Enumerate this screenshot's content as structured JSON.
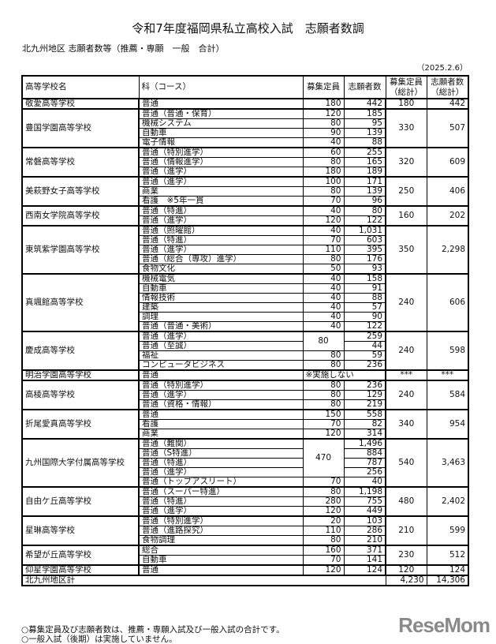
{
  "title": "令和7年度福岡県私立高校入試　志願者数調",
  "subtitle": "北九州地区 志願者数等（推薦・専願　一般　合計）",
  "date": "（2025.2.6）",
  "headers": {
    "school": "高等学校名",
    "course": "科（コース）",
    "capacity": "募集定員",
    "applicants": "志願者数",
    "total_capacity": "募集定員（総計）",
    "total_applicants": "志願者数（総計）"
  },
  "schools": [
    {
      "name": "敬愛高等学校",
      "total_capacity": "180",
      "total_applicants": "442",
      "courses": [
        {
          "name": "普通",
          "capacity": "180",
          "applicants": "442"
        }
      ]
    },
    {
      "name": "豊国学園高等学校",
      "total_capacity": "330",
      "total_applicants": "507",
      "courses": [
        {
          "name": "普通（普通・保育）",
          "capacity": "120",
          "applicants": "185"
        },
        {
          "name": "機械システム",
          "capacity": "80",
          "applicants": "95"
        },
        {
          "name": "自動車",
          "capacity": "90",
          "applicants": "139"
        },
        {
          "name": "電子情報",
          "capacity": "40",
          "applicants": "88"
        }
      ]
    },
    {
      "name": "常磐高等学校",
      "total_capacity": "320",
      "total_applicants": "609",
      "courses": [
        {
          "name": "普通（特別進学）",
          "capacity": "60",
          "applicants": "255"
        },
        {
          "name": "普通（情報進学）",
          "capacity": "80",
          "applicants": "165"
        },
        {
          "name": "普通（進学）",
          "capacity": "180",
          "applicants": "189"
        }
      ]
    },
    {
      "name": "美萩野女子高等学校",
      "total_capacity": "250",
      "total_applicants": "406",
      "courses": [
        {
          "name": "普通（進学）",
          "capacity": "100",
          "applicants": "171"
        },
        {
          "name": "商業",
          "capacity": "80",
          "applicants": "139"
        },
        {
          "name": "看護　※5年一貫",
          "capacity": "70",
          "applicants": "96"
        }
      ]
    },
    {
      "name": "西南女学院高等学校",
      "total_capacity": "160",
      "total_applicants": "202",
      "courses": [
        {
          "name": "普通（特進）",
          "capacity": "40",
          "applicants": "80"
        },
        {
          "name": "普通（進学）",
          "capacity": "120",
          "applicants": "122"
        }
      ]
    },
    {
      "name": "東筑紫学園高等学校",
      "total_capacity": "350",
      "total_applicants": "2,298",
      "courses": [
        {
          "name": "普通（照曜館）",
          "capacity": "40",
          "applicants": "1,031"
        },
        {
          "name": "普通（特進）",
          "capacity": "70",
          "applicants": "603"
        },
        {
          "name": "普通（進学）",
          "capacity": "110",
          "applicants": "395"
        },
        {
          "name": "普通（総合（専攻）進学）",
          "capacity": "80",
          "applicants": "176"
        },
        {
          "name": "食物文化",
          "capacity": "50",
          "applicants": "93"
        }
      ]
    },
    {
      "name": "真颯館高等学校",
      "total_capacity": "240",
      "total_applicants": "606",
      "courses": [
        {
          "name": "機械電気",
          "capacity": "40",
          "applicants": "158"
        },
        {
          "name": "自動車",
          "capacity": "40",
          "applicants": "91"
        },
        {
          "name": "情報技術",
          "capacity": "40",
          "applicants": "88"
        },
        {
          "name": "建築",
          "capacity": "40",
          "applicants": "57"
        },
        {
          "name": "調理",
          "capacity": "40",
          "applicants": "90"
        },
        {
          "name": "普通（普通・美術）",
          "capacity": "40",
          "applicants": "122"
        }
      ]
    },
    {
      "name": "慶成高等学校",
      "total_capacity": "240",
      "total_applicants": "598",
      "courses": [
        {
          "name": "普通（進学）",
          "capacity": "80",
          "capacity_rows": 2,
          "applicants": "259"
        },
        {
          "name": "普通（至誠）",
          "applicants": "44"
        },
        {
          "name": "福祉",
          "capacity": "80",
          "applicants": "59"
        },
        {
          "name": "コンピュータビジネス",
          "capacity": "80",
          "applicants": "236"
        }
      ]
    },
    {
      "name": "明治学園高等学校",
      "total_capacity": "***",
      "total_applicants": "***",
      "courses": [
        {
          "name": "普通",
          "note": "※実施しない"
        }
      ]
    },
    {
      "name": "高稜高等学校",
      "total_capacity": "240",
      "total_applicants": "584",
      "courses": [
        {
          "name": "普通（特別進学）",
          "capacity": "80",
          "applicants": "236"
        },
        {
          "name": "普通（進学）",
          "capacity": "80",
          "applicants": "129"
        },
        {
          "name": "普通（資格・情報）",
          "capacity": "80",
          "applicants": "219"
        }
      ]
    },
    {
      "name": "折尾愛真高等学校",
      "total_capacity": "340",
      "total_applicants": "954",
      "courses": [
        {
          "name": "普通",
          "capacity": "150",
          "applicants": "558"
        },
        {
          "name": "看護",
          "capacity": "70",
          "applicants": "82"
        },
        {
          "name": "商業",
          "capacity": "120",
          "applicants": "314"
        }
      ]
    },
    {
      "name": "九州国際大学付属高等学校",
      "total_capacity": "540",
      "total_applicants": "3,463",
      "courses": [
        {
          "name": "普通（難関）",
          "capacity": "470",
          "capacity_rows": 4,
          "applicants": "1,496"
        },
        {
          "name": "普通（S特進）",
          "applicants": "884"
        },
        {
          "name": "普通（特進）",
          "applicants": "787"
        },
        {
          "name": "普通（進学）",
          "applicants": "256"
        },
        {
          "name": "普通（トップアスリート）",
          "capacity": "70",
          "applicants": "40"
        }
      ]
    },
    {
      "name": "自由ケ丘高等学校",
      "total_capacity": "480",
      "total_applicants": "2,402",
      "courses": [
        {
          "name": "普通（スーパー特進）",
          "capacity": "80",
          "applicants": "1,198"
        },
        {
          "name": "普通（特進）",
          "capacity": "280",
          "applicants": "755"
        },
        {
          "name": "普通（進学）",
          "capacity": "120",
          "applicants": "449"
        }
      ]
    },
    {
      "name": "星琳高等学校",
      "total_capacity": "210",
      "total_applicants": "599",
      "courses": [
        {
          "name": "普通（特別進学）",
          "capacity": "20",
          "applicants": "103"
        },
        {
          "name": "普通（進路探究）",
          "capacity": "110",
          "applicants": "286"
        },
        {
          "name": "食物調理",
          "capacity": "80",
          "applicants": "210"
        }
      ]
    },
    {
      "name": "希望が丘高等学校",
      "total_capacity": "230",
      "total_applicants": "512",
      "courses": [
        {
          "name": "総合",
          "capacity": "160",
          "applicants": "371"
        },
        {
          "name": "自動車",
          "capacity": "70",
          "applicants": "141"
        }
      ]
    },
    {
      "name": "仰星学園高等学校",
      "total_capacity": "120",
      "total_applicants": "124",
      "courses": [
        {
          "name": "普通",
          "capacity": "120",
          "applicants": "124"
        }
      ]
    }
  ],
  "total": {
    "label": "北九州地区計",
    "capacity": "4,230",
    "applicants": "14,306"
  },
  "notes": [
    "○募集定員及び志願者数は、推薦・専願入試及び一般入試の合計です。",
    "○一般入試（後期）は実施していません。"
  ],
  "logo_text": "ReseMom"
}
